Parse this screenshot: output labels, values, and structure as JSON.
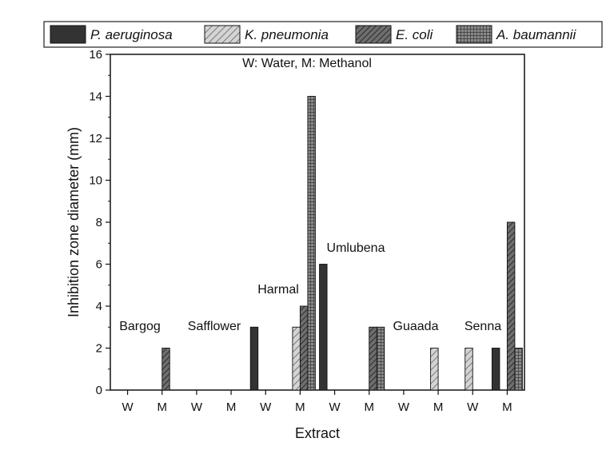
{
  "chart_data": {
    "type": "bar",
    "note": "W: Water, M: Methanol",
    "xlabel": "Extract",
    "ylabel": "Inhibition zone diameter (mm)",
    "ylim": [
      0,
      16
    ],
    "yticks": [
      0,
      2,
      4,
      6,
      8,
      10,
      12,
      14,
      16
    ],
    "legend_position": "top",
    "grid": false,
    "categories": [
      "W",
      "M",
      "W",
      "M",
      "W",
      "M",
      "W",
      "M",
      "W",
      "M",
      "W",
      "M"
    ],
    "plants": [
      {
        "name": "Bargog",
        "categories": [
          0,
          1
        ]
      },
      {
        "name": "Safflower",
        "categories": [
          2,
          3
        ]
      },
      {
        "name": "Harmal",
        "categories": [
          4,
          5
        ]
      },
      {
        "name": "Umlubena",
        "categories": [
          6,
          7
        ]
      },
      {
        "name": "Guaada",
        "categories": [
          8,
          9
        ]
      },
      {
        "name": "Senna",
        "categories": [
          10,
          11
        ]
      }
    ],
    "series": [
      {
        "name": "P. aeruginosa",
        "pattern": "solid",
        "values": [
          0,
          0,
          0,
          0,
          3,
          0,
          6,
          0,
          0,
          0,
          0,
          2
        ]
      },
      {
        "name": "K. pneumonia",
        "pattern": "light-hatch",
        "values": [
          0,
          0,
          0,
          0,
          0,
          3,
          0,
          0,
          0,
          2,
          2,
          0
        ]
      },
      {
        "name": "E. coli",
        "pattern": "dark-hatch",
        "values": [
          0,
          2,
          0,
          0,
          0,
          4,
          0,
          3,
          0,
          0,
          0,
          8
        ]
      },
      {
        "name": "A. baumannii",
        "pattern": "grid",
        "values": [
          0,
          0,
          0,
          0,
          0,
          14,
          0,
          3,
          0,
          0,
          0,
          2
        ]
      }
    ]
  }
}
